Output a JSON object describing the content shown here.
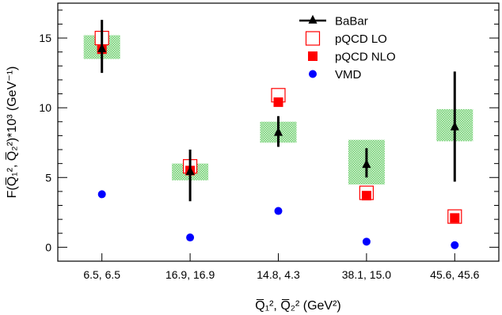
{
  "chart_data": {
    "type": "scatter",
    "categories": [
      "6.5, 6.5",
      "16.9, 16.9",
      "14.8, 4.3",
      "38.1, 15.0",
      "45.6, 45.6"
    ],
    "xlabel": "Q̅₁², Q̅₂² (GeV²)",
    "ylabel": "F(Q̅₁², Q̅₂²)*10³ (GeV⁻¹)",
    "ylim": [
      -1,
      17.5
    ],
    "yticks": [
      0,
      5,
      10,
      15
    ],
    "grid": false,
    "legend_position": "top-right",
    "series": [
      {
        "name": "BaBar",
        "marker": "triangle",
        "color": "#000000",
        "values": [
          14.2,
          5.4,
          8.2,
          5.9,
          8.6
        ],
        "stat_err_low": [
          12.5,
          3.3,
          7.2,
          5.0,
          4.7
        ],
        "stat_err_high": [
          16.3,
          7.0,
          9.4,
          7.1,
          12.6
        ],
        "syst_band_low": [
          13.5,
          4.8,
          7.5,
          4.5,
          7.6
        ],
        "syst_band_high": [
          15.2,
          6.0,
          9.0,
          7.7,
          9.9
        ],
        "syst_color": "#6fcf6f"
      },
      {
        "name": "pQCD LO",
        "marker": "open-square",
        "color": "#ff0000",
        "values": [
          15.0,
          5.8,
          10.9,
          3.9,
          2.2
        ]
      },
      {
        "name": "pQCD NLO",
        "marker": "filled-square",
        "color": "#ff0000",
        "values": [
          14.2,
          5.5,
          10.4,
          3.7,
          2.1
        ]
      },
      {
        "name": "VMD",
        "marker": "circle",
        "color": "#0000ff",
        "values": [
          3.8,
          0.7,
          2.6,
          0.4,
          0.15
        ]
      }
    ]
  }
}
